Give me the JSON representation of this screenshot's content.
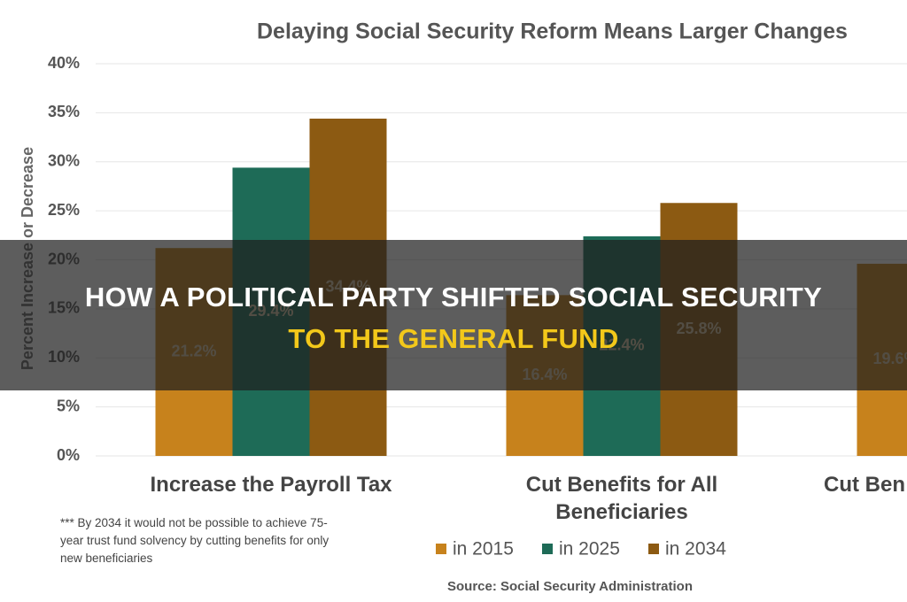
{
  "chart_data": {
    "type": "bar",
    "title": "Delaying Social Security Reform Means Larger Changes",
    "y_label": "Percent Increase or Decrease",
    "categories": [
      "Increase the Payroll Tax",
      "Cut Benefits for All Beneficiaries",
      "Cut Ben"
    ],
    "series": [
      {
        "name": "in 2015",
        "color": "#c7821c",
        "values": [
          21.2,
          16.4,
          19.6
        ],
        "value_labels": [
          "21.2%",
          "16.4%",
          "19.6%"
        ]
      },
      {
        "name": "in 2025",
        "color": "#1e6b57",
        "values": [
          29.4,
          22.4,
          null
        ],
        "value_labels": [
          "29.4%",
          "22.4%",
          null
        ]
      },
      {
        "name": "in 2034",
        "color": "#8c5a12",
        "values": [
          34.4,
          25.8,
          null
        ],
        "value_labels": [
          "34.4%",
          "25.8%",
          null
        ]
      }
    ],
    "ylim": [
      0,
      40
    ],
    "yticks": [
      {
        "value": 0,
        "label": "0%"
      },
      {
        "value": 5,
        "label": "5%"
      },
      {
        "value": 10,
        "label": "10%"
      },
      {
        "value": 15,
        "label": "15%"
      },
      {
        "value": 20,
        "label": "20%"
      },
      {
        "value": 25,
        "label": "25%"
      },
      {
        "value": 30,
        "label": "30%"
      },
      {
        "value": 35,
        "label": "35%"
      },
      {
        "value": 40,
        "label": "40%"
      }
    ],
    "grid": true,
    "legend": "bottom",
    "footnote": "*** By 2034 it would not be possible to achieve 75-year trust fund solvency by cutting benefits for only new beneficiaries",
    "source": "Source: Social Security Administration"
  },
  "overlay": {
    "headline": [
      "HOW A POLITICAL PARTY SHIFTED SOCIAL SECURITY",
      "TO THE GENERAL FUND"
    ]
  }
}
